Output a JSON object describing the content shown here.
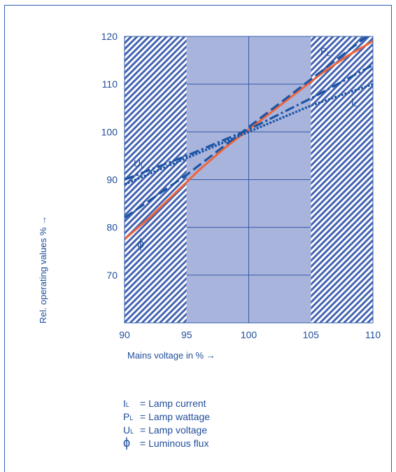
{
  "chart_data": {
    "type": "line",
    "xlabel": "Mains voltage in %",
    "ylabel": "Rel. operating values %",
    "xlim": [
      90,
      110
    ],
    "ylim": [
      60,
      120
    ],
    "x_ticks": [
      "90",
      "95",
      "100",
      "105",
      "110"
    ],
    "y_ticks": [
      "70",
      "80",
      "90",
      "100",
      "110",
      "120"
    ],
    "grid": true,
    "highlight_band": [
      95,
      105
    ],
    "hatched_regions": [
      [
        90,
        95
      ],
      [
        105,
        110
      ]
    ],
    "series": [
      {
        "name": "Φ",
        "label_main": "ϕ",
        "label_sub": "",
        "style": "solid",
        "color": "#f0643a",
        "x": [
          90,
          92,
          94,
          95,
          96,
          98,
          100,
          102,
          104,
          105,
          106,
          108,
          110
        ],
        "y": [
          77.5,
          82,
          87,
          89.5,
          92,
          96.5,
          100.5,
          104.5,
          108.5,
          110.5,
          112.5,
          116,
          119
        ]
      },
      {
        "name": "PL",
        "label_main": "P",
        "label_sub": "L",
        "style": "dashed",
        "color": "#1c55a5",
        "x": [
          90,
          95,
          100,
          105,
          110
        ],
        "y": [
          82,
          91,
          101,
          111,
          121
        ]
      },
      {
        "name": "UL",
        "label_main": "U",
        "label_sub": "L",
        "style": "dashdot",
        "color": "#1c55a5",
        "x": [
          90,
          95,
          100,
          105,
          110
        ],
        "y": [
          90,
          95,
          100.5,
          107,
          114
        ]
      },
      {
        "name": "IL",
        "label_main": "I",
        "label_sub": "L",
        "style": "dotted",
        "color": "#1c55a5",
        "x": [
          90,
          95,
          100,
          105,
          110
        ],
        "y": [
          89,
          94.5,
          100,
          105.5,
          110
        ]
      }
    ],
    "colors": {
      "band": "#a9b4dc",
      "hatch": "#3d5fb0",
      "grid": "#3559a8",
      "text": "#1f4e9a"
    }
  },
  "legend": [
    {
      "sym": "I",
      "sub": "L",
      "text": "= Lamp current"
    },
    {
      "sym": "P",
      "sub": "L",
      "text": "= Lamp wattage"
    },
    {
      "sym": "U",
      "sub": "L",
      "text": "= Lamp voltage"
    },
    {
      "sym": "ϕ",
      "sub": "",
      "text": "= Luminous flux"
    }
  ],
  "arrow": "→",
  "arrow_up": "↑"
}
